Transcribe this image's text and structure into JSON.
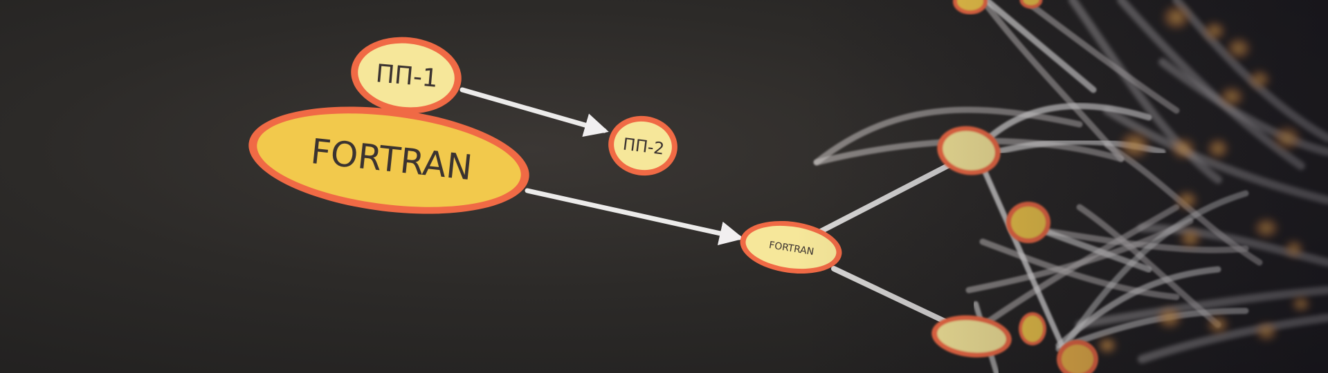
{
  "nodes": {
    "pp1": "ПП-1",
    "fortran_big": "FORTRAN",
    "pp2": "ПП-2",
    "fortran_small": "FORTRAN"
  },
  "colors": {
    "background": "#2c2a28",
    "node_fill": "#f2c94c",
    "node_fill_light": "#f6e79a",
    "node_ring": "#f06a45",
    "edge": "#e8e6e6"
  }
}
